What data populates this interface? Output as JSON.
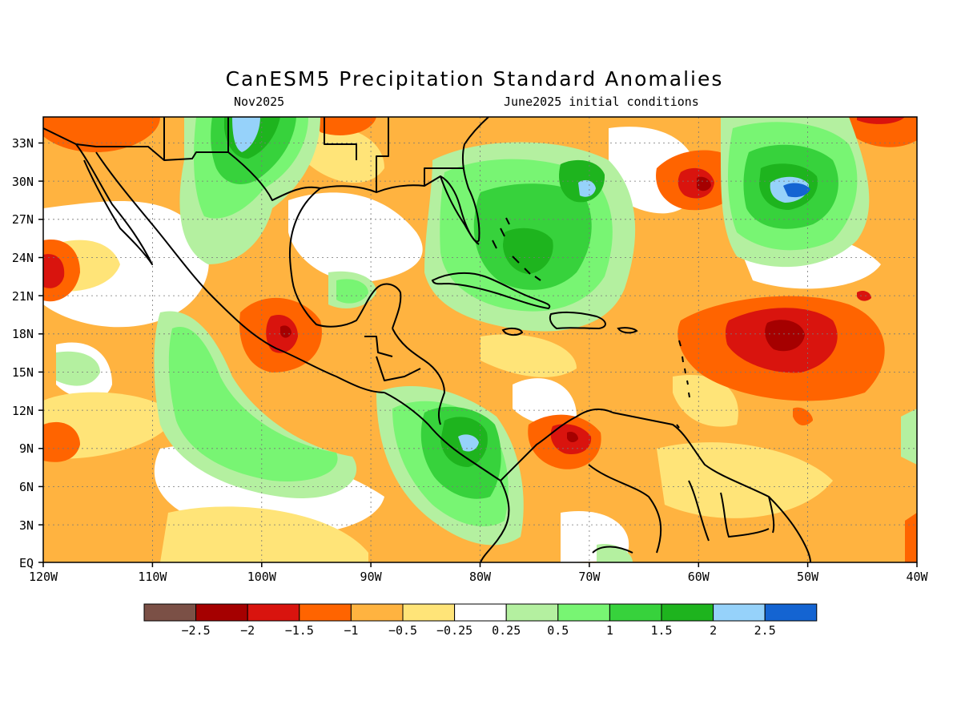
{
  "title": "CanESM5 Precipitation Standard Anomalies",
  "subtitle_left": "Nov2025",
  "subtitle_right": "June2025 initial conditions",
  "map": {
    "lat_ticks": [
      "33N",
      "30N",
      "27N",
      "24N",
      "21N",
      "18N",
      "15N",
      "12N",
      "9N",
      "6N",
      "3N",
      "EQ"
    ],
    "lon_ticks": [
      "120W",
      "110W",
      "100W",
      "90W",
      "80W",
      "70W",
      "60W",
      "50W",
      "40W"
    ],
    "extent": {
      "lon_min": -120,
      "lon_max": -40,
      "lat_min": 0,
      "lat_max": 35
    }
  },
  "colorbar": {
    "colors": [
      "#7b5046",
      "#a50000",
      "#d9140e",
      "#ff6400",
      "#ffb340",
      "#ffe478",
      "#ffffff",
      "#b4f0a0",
      "#78f573",
      "#37d23c",
      "#1eb41e",
      "#96d2fa",
      "#1464d2"
    ],
    "labels": [
      "-2.5",
      "-2",
      "-1.5",
      "-1",
      "-0.5",
      "-0.25",
      "0.25",
      "0.5",
      "1",
      "1.5",
      "2",
      "2.5"
    ]
  },
  "anomaly_fields": [
    {
      "lon": -112,
      "lat": 31,
      "level": "-1",
      "category": "dry"
    },
    {
      "lon": -118,
      "lat": 23,
      "level": "-1.5",
      "category": "dry"
    },
    {
      "lon": -98,
      "lat": 18,
      "level": "-1.5",
      "category": "dry"
    },
    {
      "lon": -57,
      "lat": 29.5,
      "level": "-2",
      "category": "dry"
    },
    {
      "lon": -52,
      "lat": 17.5,
      "level": "-2.5",
      "category": "dry"
    },
    {
      "lon": -71,
      "lat": 9.5,
      "level": "-1.5",
      "category": "dry"
    },
    {
      "lon": -50,
      "lat": 29,
      "level": "2.5",
      "category": "wet"
    },
    {
      "lon": -71,
      "lat": 29,
      "level": "2",
      "category": "wet"
    },
    {
      "lon": -101,
      "lat": 32,
      "level": "2",
      "category": "wet"
    },
    {
      "lon": -81,
      "lat": 9,
      "level": "2",
      "category": "wet"
    },
    {
      "lon": -75,
      "lat": 23,
      "level": "1.5",
      "category": "wet"
    }
  ]
}
